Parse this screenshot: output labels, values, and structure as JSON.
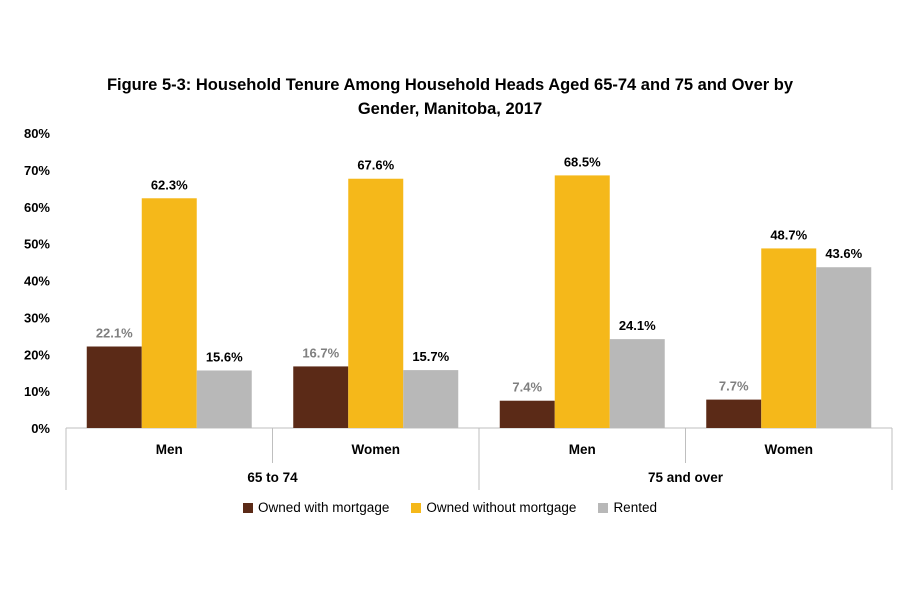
{
  "chart_data": {
    "type": "bar",
    "title_lines": [
      "Figure 5-3: Household Tenure Among Household Heads Aged 65-74 and 75 and Over by",
      "Gender, Manitoba, 2017"
    ],
    "ylim": [
      0,
      80
    ],
    "yticks": [
      "0%",
      "10%",
      "20%",
      "30%",
      "40%",
      "50%",
      "60%",
      "70%",
      "80%"
    ],
    "grid": false,
    "legend_position": "bottom",
    "groups": [
      {
        "label": "65 to 74",
        "categories": [
          "Men",
          "Women"
        ]
      },
      {
        "label": "75 and over",
        "categories": [
          "Men",
          "Women"
        ]
      }
    ],
    "categories": [
      "Men",
      "Women",
      "Men",
      "Women"
    ],
    "series": [
      {
        "name": "Owned with mortgage",
        "color": "#5b2a17",
        "label_color": "#7f7f7f",
        "values": [
          22.1,
          16.7,
          7.4,
          7.7
        ],
        "labels": [
          "22.1%",
          "16.7%",
          "7.4%",
          "7.7%"
        ]
      },
      {
        "name": "Owned without mortgage",
        "color": "#f5b81a",
        "label_color": "#000000",
        "values": [
          62.3,
          67.6,
          68.5,
          48.7
        ],
        "labels": [
          "62.3%",
          "67.6%",
          "68.5%",
          "48.7%"
        ]
      },
      {
        "name": "Rented",
        "color": "#b8b8b8",
        "label_color": "#000000",
        "values": [
          15.6,
          15.7,
          24.1,
          43.6
        ],
        "labels": [
          "15.6%",
          "15.7%",
          "24.1%",
          "43.6%"
        ]
      }
    ]
  }
}
